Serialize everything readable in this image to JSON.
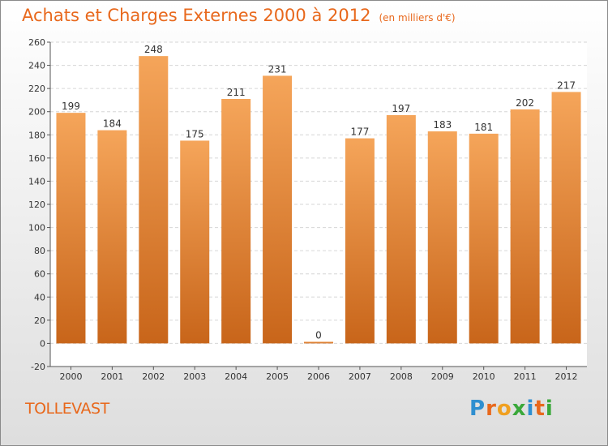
{
  "title": "Achats et Charges Externes 2000 à 2012",
  "subtitle": "(en milliers d'€)",
  "commune": "TOLLEVAST",
  "logo": {
    "letters": [
      "P",
      "r",
      "o",
      "x",
      "i",
      "t",
      "i"
    ],
    "colors": [
      "#2f8fd0",
      "#e8681c",
      "#f0a020",
      "#3aa83a",
      "#2f8fd0",
      "#e8681c",
      "#3aa83a"
    ]
  },
  "colors": {
    "bar_top": "#f5a55a",
    "bar_bottom": "#c8651a",
    "title": "#e8681c",
    "grid": "#d6d6d6"
  },
  "chart_data": {
    "type": "bar",
    "categories": [
      "2000",
      "2001",
      "2002",
      "2003",
      "2004",
      "2005",
      "2006",
      "2007",
      "2008",
      "2009",
      "2010",
      "2011",
      "2012"
    ],
    "values": [
      199,
      184,
      248,
      175,
      211,
      231,
      0,
      177,
      197,
      183,
      181,
      202,
      217
    ],
    "title": "Achats et Charges Externes 2000 à 2012",
    "xlabel": "",
    "ylabel": "",
    "ylim": [
      -20,
      260
    ],
    "yticks": [
      -20,
      0,
      20,
      40,
      60,
      80,
      100,
      120,
      140,
      160,
      180,
      200,
      220,
      240,
      260
    ],
    "grid": true,
    "legend": "none"
  }
}
